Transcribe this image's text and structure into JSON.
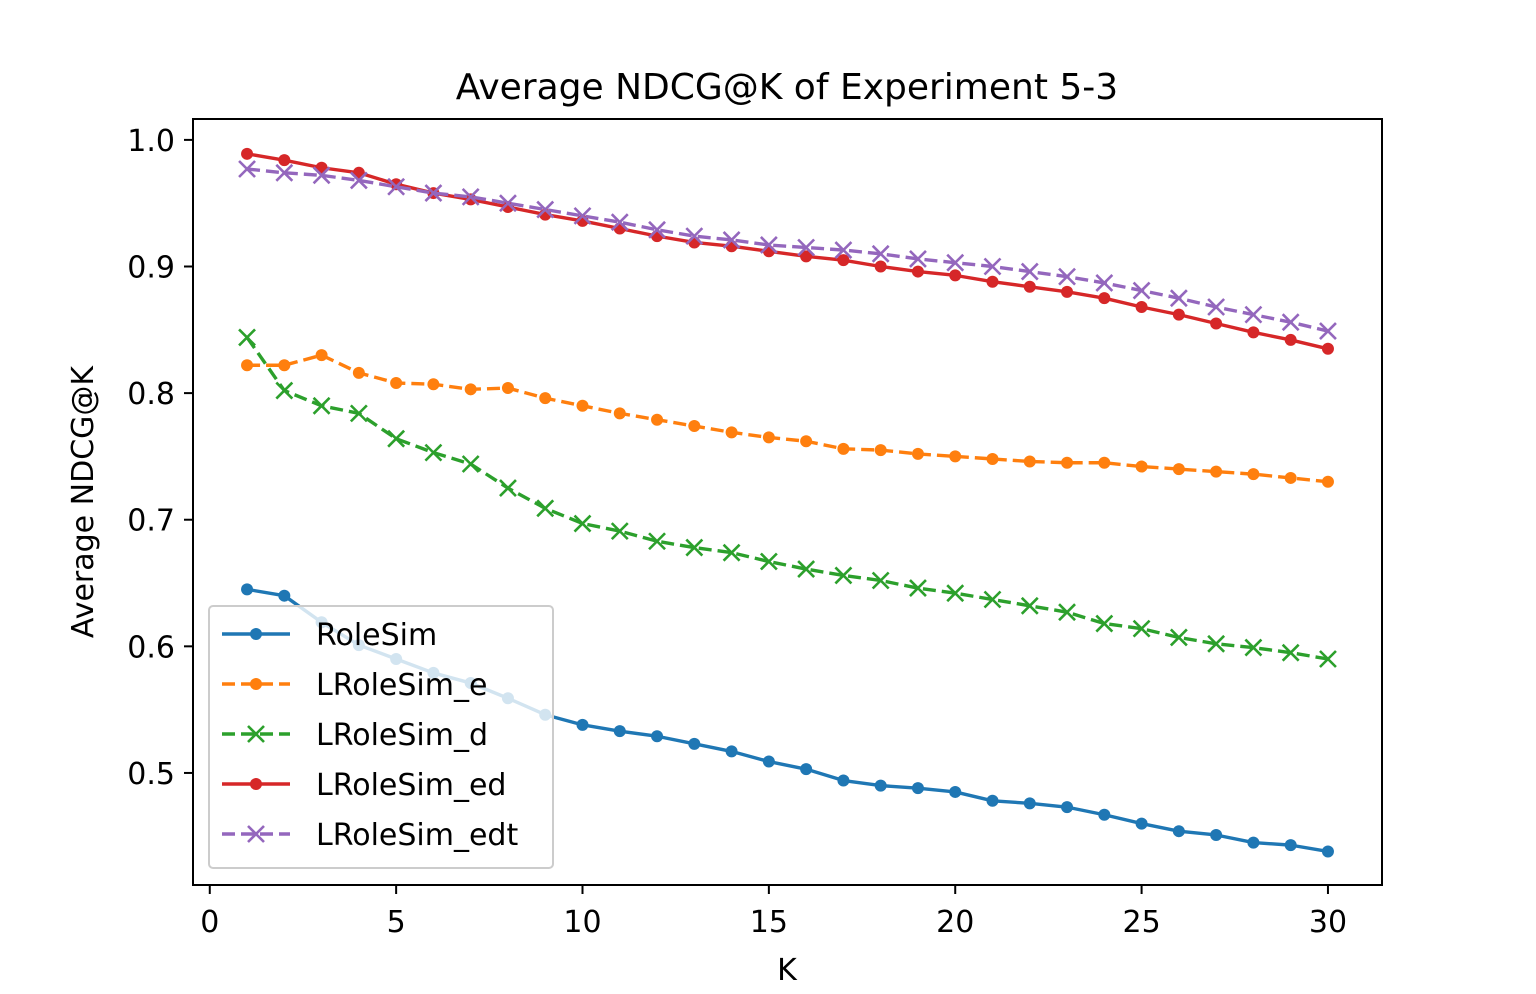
{
  "chart_data": {
    "type": "line",
    "title": "Average NDCG@K of Experiment 5-3",
    "xlabel": "K",
    "ylabel": "Average NDCG@K",
    "xlim": [
      -0.45,
      31.45
    ],
    "ylim": [
      0.4115,
      1.0165
    ],
    "xticks": [
      0,
      5,
      10,
      15,
      20,
      25,
      30
    ],
    "yticks": [
      0.5,
      0.6,
      0.7,
      0.8,
      0.9,
      1.0
    ],
    "ytick_labels": [
      "0.5",
      "0.6",
      "0.7",
      "0.8",
      "0.9",
      "1.0"
    ],
    "grid": false,
    "legend_position": "lower-left",
    "x": [
      1,
      2,
      3,
      4,
      5,
      6,
      7,
      8,
      9,
      10,
      11,
      12,
      13,
      14,
      15,
      16,
      17,
      18,
      19,
      20,
      21,
      22,
      23,
      24,
      25,
      26,
      27,
      28,
      29,
      30
    ],
    "series": [
      {
        "name": "RoleSim",
        "color": "#1f77b4",
        "linestyle": "solid",
        "marker": "dot",
        "values": [
          0.645,
          0.64,
          0.619,
          0.601,
          0.59,
          0.579,
          0.571,
          0.559,
          0.546,
          0.538,
          0.533,
          0.529,
          0.523,
          0.517,
          0.509,
          0.503,
          0.494,
          0.49,
          0.488,
          0.485,
          0.478,
          0.476,
          0.473,
          0.467,
          0.46,
          0.454,
          0.451,
          0.445,
          0.443,
          0.438
        ]
      },
      {
        "name": "LRoleSim_e",
        "color": "#ff7f0e",
        "linestyle": "dashed",
        "marker": "dot",
        "values": [
          0.822,
          0.822,
          0.83,
          0.816,
          0.808,
          0.807,
          0.803,
          0.804,
          0.796,
          0.79,
          0.784,
          0.779,
          0.774,
          0.769,
          0.765,
          0.762,
          0.756,
          0.755,
          0.752,
          0.75,
          0.748,
          0.746,
          0.745,
          0.745,
          0.742,
          0.74,
          0.738,
          0.736,
          0.733,
          0.73
        ]
      },
      {
        "name": "LRoleSim_d",
        "color": "#2ca02c",
        "linestyle": "dashed",
        "marker": "x",
        "values": [
          0.844,
          0.802,
          0.79,
          0.784,
          0.764,
          0.753,
          0.744,
          0.725,
          0.709,
          0.697,
          0.691,
          0.683,
          0.678,
          0.674,
          0.667,
          0.661,
          0.656,
          0.652,
          0.646,
          0.642,
          0.637,
          0.632,
          0.627,
          0.618,
          0.614,
          0.607,
          0.602,
          0.599,
          0.595,
          0.59
        ]
      },
      {
        "name": "LRoleSim_ed",
        "color": "#d62728",
        "linestyle": "solid",
        "marker": "dot",
        "values": [
          0.989,
          0.984,
          0.978,
          0.974,
          0.965,
          0.958,
          0.953,
          0.947,
          0.941,
          0.936,
          0.93,
          0.924,
          0.919,
          0.916,
          0.912,
          0.908,
          0.905,
          0.9,
          0.896,
          0.893,
          0.888,
          0.884,
          0.88,
          0.875,
          0.868,
          0.862,
          0.855,
          0.848,
          0.842,
          0.835
        ]
      },
      {
        "name": "LRoleSim_edt",
        "color": "#9467bd",
        "linestyle": "dashed",
        "marker": "x",
        "values": [
          0.977,
          0.974,
          0.972,
          0.968,
          0.963,
          0.958,
          0.955,
          0.95,
          0.945,
          0.94,
          0.935,
          0.929,
          0.924,
          0.921,
          0.917,
          0.915,
          0.913,
          0.91,
          0.906,
          0.903,
          0.9,
          0.896,
          0.892,
          0.887,
          0.881,
          0.875,
          0.868,
          0.862,
          0.856,
          0.849
        ]
      }
    ]
  }
}
